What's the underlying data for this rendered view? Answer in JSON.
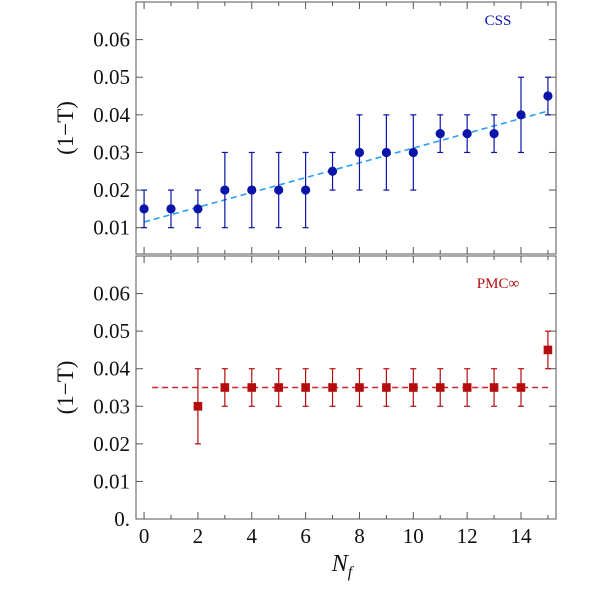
{
  "chart_data": [
    {
      "type": "scatter",
      "panel_label": "CSS",
      "ylabel": "(1−T)",
      "xlabel": "",
      "xlim": [
        -0.3,
        15.3
      ],
      "ylim": [
        0.003,
        0.07
      ],
      "xticks": [
        0,
        2,
        4,
        6,
        8,
        10,
        12,
        14
      ],
      "yticks": [
        0.01,
        0.02,
        0.03,
        0.04,
        0.05,
        0.06
      ],
      "ytick_labels": [
        "0.01",
        "0.02",
        "0.03",
        "0.04",
        "0.05",
        "0.06"
      ],
      "marker": "circle",
      "color": "#0a14a8",
      "fit_color": "#2a9df4",
      "x": [
        0,
        1,
        2,
        3,
        4,
        5,
        6,
        7,
        8,
        9,
        10,
        11,
        12,
        13,
        14,
        15
      ],
      "y": [
        0.015,
        0.015,
        0.015,
        0.02,
        0.02,
        0.02,
        0.02,
        0.025,
        0.03,
        0.03,
        0.03,
        0.035,
        0.035,
        0.035,
        0.04,
        0.045
      ],
      "err_low": [
        0.01,
        0.01,
        0.01,
        0.01,
        0.01,
        0.01,
        0.01,
        0.02,
        0.02,
        0.02,
        0.02,
        0.03,
        0.03,
        0.03,
        0.03,
        0.04
      ],
      "err_high": [
        0.02,
        0.02,
        0.02,
        0.03,
        0.03,
        0.03,
        0.03,
        0.03,
        0.04,
        0.04,
        0.04,
        0.04,
        0.04,
        0.04,
        0.05,
        0.05
      ],
      "fit": {
        "x": [
          0,
          15
        ],
        "y": [
          0.0115,
          0.041
        ]
      }
    },
    {
      "type": "scatter",
      "panel_label": "PMC∞",
      "ylabel": "(1−T)",
      "xlabel": "N",
      "xlabel_sub": "f",
      "xlim": [
        -0.3,
        15.3
      ],
      "ylim": [
        0.0,
        0.07
      ],
      "xticks": [
        0,
        2,
        4,
        6,
        8,
        10,
        12,
        14
      ],
      "yticks": [
        0.0,
        0.01,
        0.02,
        0.03,
        0.04,
        0.05,
        0.06
      ],
      "ytick_labels": [
        "0.",
        "0.01",
        "0.02",
        "0.03",
        "0.04",
        "0.05",
        "0.06"
      ],
      "marker": "square",
      "color": "#b30d0d",
      "fit_color": "#d42222",
      "x": [
        2,
        3,
        4,
        5,
        6,
        7,
        8,
        9,
        10,
        11,
        12,
        13,
        14,
        15
      ],
      "y": [
        0.03,
        0.035,
        0.035,
        0.035,
        0.035,
        0.035,
        0.035,
        0.035,
        0.035,
        0.035,
        0.035,
        0.035,
        0.035,
        0.045
      ],
      "err_low": [
        0.02,
        0.03,
        0.03,
        0.03,
        0.03,
        0.03,
        0.03,
        0.03,
        0.03,
        0.03,
        0.03,
        0.03,
        0.03,
        0.04
      ],
      "err_high": [
        0.04,
        0.04,
        0.04,
        0.04,
        0.04,
        0.04,
        0.04,
        0.04,
        0.04,
        0.04,
        0.04,
        0.04,
        0.04,
        0.05
      ],
      "fit": {
        "x": [
          0.3,
          15
        ],
        "y": [
          0.035,
          0.035
        ]
      }
    }
  ]
}
